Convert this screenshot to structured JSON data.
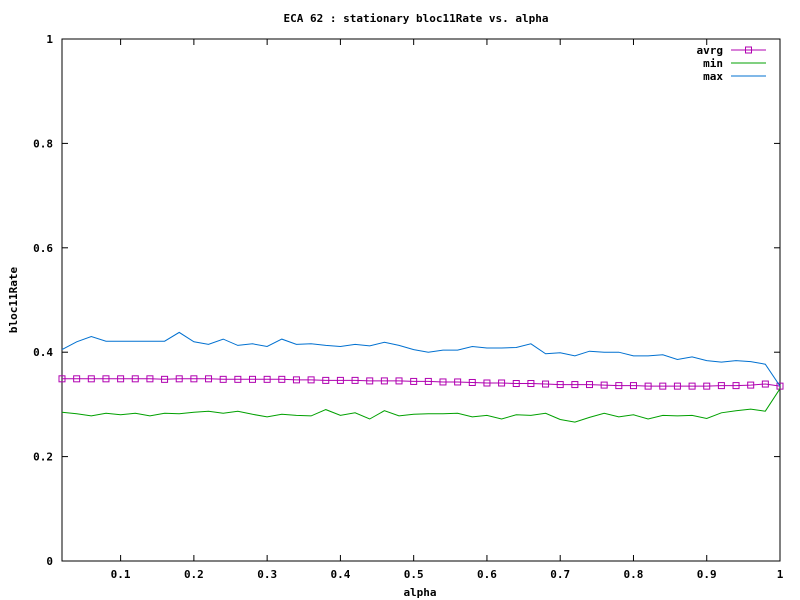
{
  "chart_data": {
    "type": "line",
    "title": "ECA 62 : stationary bloc11Rate vs. alpha",
    "xlabel": "alpha",
    "ylabel": "bloc11Rate",
    "xlim": [
      0.02,
      1.0
    ],
    "ylim": [
      0,
      1
    ],
    "xticks": [
      "0.1",
      "0.2",
      "0.3",
      "0.4",
      "0.5",
      "0.6",
      "0.7",
      "0.8",
      "0.9",
      "1"
    ],
    "yticks": [
      "0",
      "0.2",
      "0.4",
      "0.6",
      "0.8",
      "1"
    ],
    "grid": false,
    "legend_position": "top-right",
    "x": [
      0.02,
      0.04,
      0.06,
      0.08,
      0.1,
      0.12,
      0.14,
      0.16,
      0.18,
      0.2,
      0.22,
      0.24,
      0.26,
      0.28,
      0.3,
      0.32,
      0.34,
      0.36,
      0.38,
      0.4,
      0.42,
      0.44,
      0.46,
      0.48,
      0.5,
      0.52,
      0.54,
      0.56,
      0.58,
      0.6,
      0.62,
      0.64,
      0.66,
      0.68,
      0.7,
      0.72,
      0.74,
      0.76,
      0.78,
      0.8,
      0.82,
      0.84,
      0.86,
      0.88,
      0.9,
      0.92,
      0.94,
      0.96,
      0.98,
      1.0
    ],
    "series": [
      {
        "name": "avrg",
        "color": "#b000b0",
        "marker": "square",
        "values": [
          0.349,
          0.349,
          0.349,
          0.349,
          0.349,
          0.349,
          0.349,
          0.348,
          0.349,
          0.349,
          0.349,
          0.348,
          0.348,
          0.348,
          0.348,
          0.348,
          0.347,
          0.347,
          0.346,
          0.346,
          0.346,
          0.345,
          0.345,
          0.345,
          0.344,
          0.344,
          0.343,
          0.343,
          0.342,
          0.341,
          0.341,
          0.34,
          0.34,
          0.339,
          0.338,
          0.338,
          0.338,
          0.337,
          0.336,
          0.336,
          0.335,
          0.335,
          0.335,
          0.335,
          0.335,
          0.336,
          0.336,
          0.337,
          0.339,
          0.335
        ]
      },
      {
        "name": "min",
        "color": "#00a000",
        "marker": "none",
        "values": [
          0.285,
          0.282,
          0.278,
          0.283,
          0.28,
          0.283,
          0.278,
          0.283,
          0.282,
          0.285,
          0.287,
          0.283,
          0.287,
          0.281,
          0.276,
          0.281,
          0.279,
          0.278,
          0.29,
          0.279,
          0.284,
          0.272,
          0.288,
          0.278,
          0.281,
          0.282,
          0.282,
          0.283,
          0.276,
          0.279,
          0.272,
          0.28,
          0.279,
          0.283,
          0.271,
          0.266,
          0.275,
          0.283,
          0.276,
          0.28,
          0.272,
          0.279,
          0.278,
          0.279,
          0.273,
          0.284,
          0.288,
          0.291,
          0.287,
          0.33
        ]
      },
      {
        "name": "max",
        "color": "#0070d0",
        "marker": "none",
        "values": [
          0.405,
          0.42,
          0.43,
          0.421,
          0.421,
          0.421,
          0.421,
          0.421,
          0.438,
          0.42,
          0.415,
          0.425,
          0.413,
          0.416,
          0.411,
          0.425,
          0.415,
          0.416,
          0.413,
          0.411,
          0.415,
          0.412,
          0.419,
          0.413,
          0.405,
          0.4,
          0.404,
          0.404,
          0.411,
          0.408,
          0.408,
          0.409,
          0.416,
          0.397,
          0.399,
          0.393,
          0.402,
          0.4,
          0.4,
          0.393,
          0.393,
          0.395,
          0.386,
          0.391,
          0.384,
          0.381,
          0.384,
          0.382,
          0.377,
          0.335
        ]
      }
    ]
  }
}
